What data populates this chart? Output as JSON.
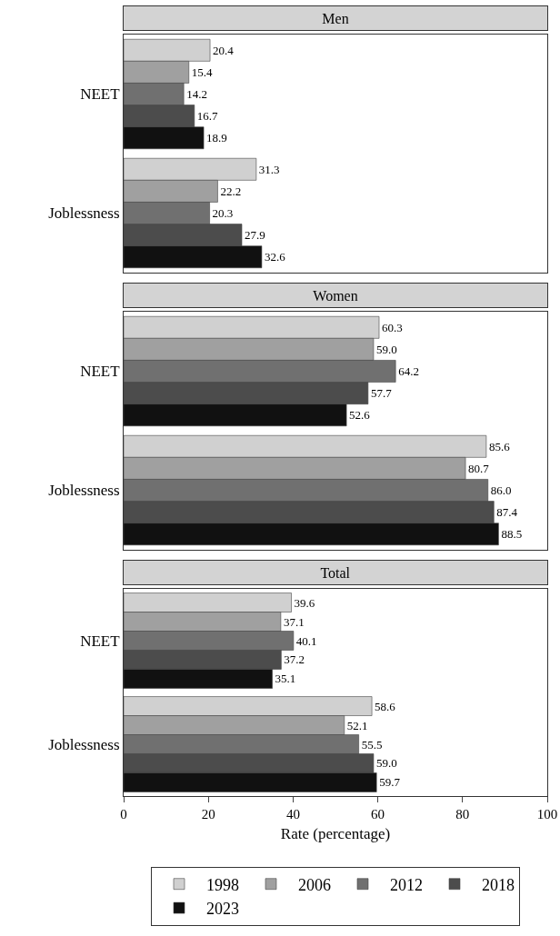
{
  "chart_data": [
    {
      "type": "bar",
      "title": "Men",
      "orientation": "horizontal",
      "categories": [
        "NEET",
        "Joblessness"
      ],
      "xlim": [
        0,
        100
      ],
      "xticks": [
        0,
        20,
        40,
        60,
        80,
        100
      ],
      "tick_labels": "y",
      "legend": false,
      "series": [
        {
          "color": "#d0d0d0",
          "values": [
            20.4,
            31.3
          ],
          "value_labels": [
            "20.4",
            "31.3"
          ]
        },
        {
          "color": "#a0a0a0",
          "values": [
            15.4,
            22.2
          ],
          "value_labels": [
            "15.4",
            "22.2"
          ]
        },
        {
          "color": "#707070",
          "values": [
            14.2,
            20.3
          ],
          "value_labels": [
            "14.2",
            "20.3"
          ]
        },
        {
          "color": "#4c4c4c",
          "values": [
            16.7,
            27.9
          ],
          "value_labels": [
            "16.7",
            "27.9"
          ]
        },
        {
          "color": "#111111",
          "values": [
            18.9,
            32.6
          ],
          "value_labels": [
            "18.9",
            "32.6"
          ]
        }
      ]
    },
    {
      "type": "bar",
      "title": "Women",
      "orientation": "horizontal",
      "categories": [
        "NEET",
        "Joblessness"
      ],
      "xlim": [
        0,
        100
      ],
      "xticks": [
        0,
        20,
        40,
        60,
        80,
        100
      ],
      "tick_labels": "y",
      "legend": false,
      "series": [
        {
          "color": "#d0d0d0",
          "values": [
            60.3,
            85.6
          ],
          "value_labels": [
            "60.3",
            "85.6"
          ]
        },
        {
          "color": "#a0a0a0",
          "values": [
            59.0,
            80.7
          ],
          "value_labels": [
            "59.0",
            "80.7"
          ]
        },
        {
          "color": "#707070",
          "values": [
            64.2,
            86.0
          ],
          "value_labels": [
            "64.2",
            "86.0"
          ]
        },
        {
          "color": "#4c4c4c",
          "values": [
            57.7,
            87.4
          ],
          "value_labels": [
            "57.7",
            "87.4"
          ]
        },
        {
          "color": "#111111",
          "values": [
            52.6,
            88.5
          ],
          "value_labels": [
            "52.6",
            "88.5"
          ]
        }
      ]
    },
    {
      "type": "bar",
      "title": "Total",
      "orientation": "horizontal",
      "categories": [
        "NEET",
        "Joblessness"
      ],
      "xlim": [
        0,
        100
      ],
      "xticks": [
        0,
        20,
        40,
        60,
        80,
        100
      ],
      "xlabel": "Rate (percentage)",
      "legend": "bottom",
      "series": [
        {
          "name": "1998",
          "color": "#d0d0d0",
          "values": [
            39.6,
            58.6
          ],
          "value_labels": [
            "39.6",
            "58.6"
          ]
        },
        {
          "name": "2006",
          "color": "#a0a0a0",
          "values": [
            37.1,
            52.1
          ],
          "value_labels": [
            "37.1",
            "52.1"
          ]
        },
        {
          "name": "2012",
          "color": "#707070",
          "values": [
            40.1,
            55.5
          ],
          "value_labels": [
            "40.1",
            "55.5"
          ]
        },
        {
          "name": "2018",
          "color": "#4c4c4c",
          "values": [
            37.2,
            59.0
          ],
          "value_labels": [
            "37.2",
            "59.0"
          ]
        },
        {
          "name": "2023",
          "color": "#111111",
          "values": [
            35.1,
            59.7
          ],
          "value_labels": [
            "35.1",
            "59.7"
          ]
        }
      ]
    }
  ]
}
